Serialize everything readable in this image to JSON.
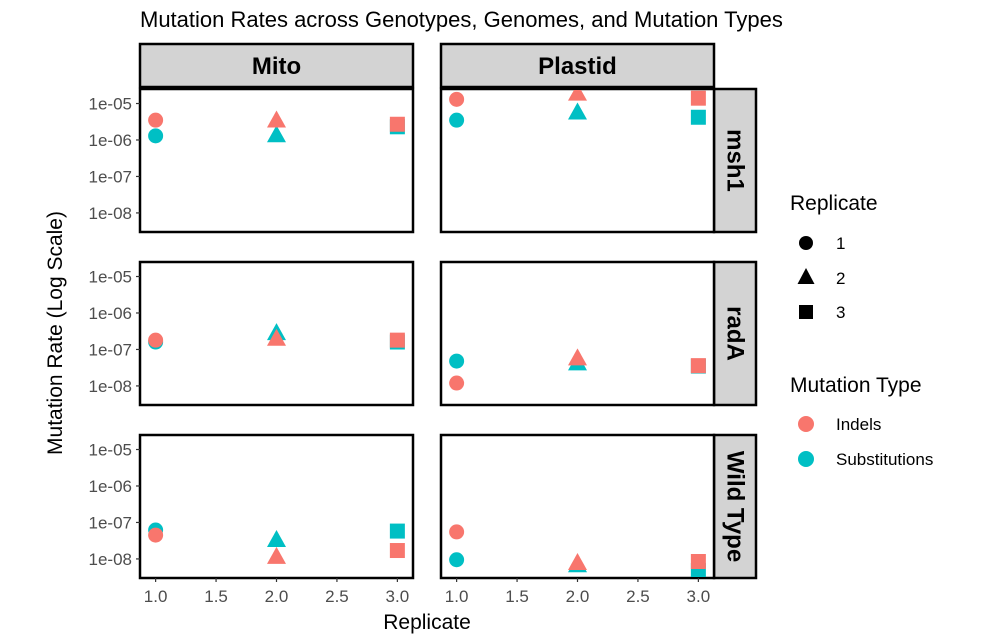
{
  "chart_data": {
    "type": "scatter",
    "title": "Mutation Rates across Genotypes, Genomes, and Mutation Types",
    "xlabel": "Replicate",
    "ylabel": "Mutation Rate (Log Scale)",
    "y_scale": "log10",
    "ylim": [
      3e-09,
      2.5e-05
    ],
    "xlim": [
      0.97,
      3.03
    ],
    "x_ticks": [
      "1.0",
      "1.5",
      "2.0",
      "2.5",
      "3.0"
    ],
    "y_ticks": [
      "1e-05",
      "1e-06",
      "1e-07",
      "1e-08"
    ],
    "facet_columns": [
      "Mito",
      "Plastid"
    ],
    "facet_rows": [
      "msh1",
      "radA",
      "Wild Type"
    ],
    "legend": {
      "placement": "right",
      "shape_title": "Replicate",
      "shape_items": [
        {
          "label": "1",
          "shape": "circle"
        },
        {
          "label": "2",
          "shape": "triangle"
        },
        {
          "label": "3",
          "shape": "square"
        }
      ],
      "color_title": "Mutation Type",
      "color_items": [
        {
          "label": "Indels",
          "color": "#F8766D"
        },
        {
          "label": "Substitutions",
          "color": "#00BFC4"
        }
      ]
    },
    "colors": {
      "Indels": "#F8766D",
      "Substitutions": "#00BFC4"
    },
    "panels": [
      {
        "genotype": "msh1",
        "genome": "Mito",
        "points": [
          {
            "x": 1,
            "y": 1.3e-06,
            "type": "Substitutions"
          },
          {
            "x": 1,
            "y": 3.5e-06,
            "type": "Indels"
          },
          {
            "x": 2,
            "y": 1.3e-06,
            "type": "Substitutions"
          },
          {
            "x": 2,
            "y": 3.3e-06,
            "type": "Indels"
          },
          {
            "x": 3,
            "y": 2.3e-06,
            "type": "Substitutions"
          },
          {
            "x": 3,
            "y": 2.7e-06,
            "type": "Indels"
          }
        ]
      },
      {
        "genotype": "msh1",
        "genome": "Plastid",
        "points": [
          {
            "x": 1,
            "y": 3.5e-06,
            "type": "Substitutions"
          },
          {
            "x": 1,
            "y": 1.3e-05,
            "type": "Indels"
          },
          {
            "x": 2,
            "y": 5.5e-06,
            "type": "Substitutions"
          },
          {
            "x": 2,
            "y": 1.8e-05,
            "type": "Indels"
          },
          {
            "x": 3,
            "y": 4.2e-06,
            "type": "Substitutions"
          },
          {
            "x": 3,
            "y": 1.4e-05,
            "type": "Indels"
          }
        ]
      },
      {
        "genotype": "radA",
        "genome": "Mito",
        "points": [
          {
            "x": 1,
            "y": 1.6e-07,
            "type": "Substitutions"
          },
          {
            "x": 1,
            "y": 1.8e-07,
            "type": "Indels"
          },
          {
            "x": 2,
            "y": 2.7e-07,
            "type": "Substitutions"
          },
          {
            "x": 2,
            "y": 1.9e-07,
            "type": "Indels"
          },
          {
            "x": 3,
            "y": 1.6e-07,
            "type": "Substitutions"
          },
          {
            "x": 3,
            "y": 1.8e-07,
            "type": "Indels"
          }
        ]
      },
      {
        "genotype": "radA",
        "genome": "Plastid",
        "points": [
          {
            "x": 1,
            "y": 4.8e-08,
            "type": "Substitutions"
          },
          {
            "x": 1,
            "y": 1.2e-08,
            "type": "Indels"
          },
          {
            "x": 2,
            "y": 4e-08,
            "type": "Substitutions"
          },
          {
            "x": 2,
            "y": 5.5e-08,
            "type": "Indels"
          },
          {
            "x": 3,
            "y": 3.5e-08,
            "type": "Substitutions"
          },
          {
            "x": 3,
            "y": 3.6e-08,
            "type": "Indels"
          }
        ]
      },
      {
        "genotype": "Wild Type",
        "genome": "Mito",
        "points": [
          {
            "x": 1,
            "y": 6.2e-08,
            "type": "Substitutions"
          },
          {
            "x": 1,
            "y": 4.5e-08,
            "type": "Indels"
          },
          {
            "x": 2,
            "y": 3.2e-08,
            "type": "Substitutions"
          },
          {
            "x": 2,
            "y": 1.1e-08,
            "type": "Indels"
          },
          {
            "x": 3,
            "y": 5.8e-08,
            "type": "Substitutions"
          },
          {
            "x": 3,
            "y": 1.7e-08,
            "type": "Indels"
          }
        ]
      },
      {
        "genotype": "Wild Type",
        "genome": "Plastid",
        "points": [
          {
            "x": 1,
            "y": 9.5e-09,
            "type": "Substitutions"
          },
          {
            "x": 1,
            "y": 5.5e-08,
            "type": "Indels"
          },
          {
            "x": 2,
            "y": 6.5e-09,
            "type": "Substitutions"
          },
          {
            "x": 2,
            "y": 7.5e-09,
            "type": "Indels"
          },
          {
            "x": 3,
            "y": 4.8e-09,
            "type": "Substitutions"
          },
          {
            "x": 3,
            "y": 8.5e-09,
            "type": "Indels"
          }
        ]
      }
    ]
  }
}
